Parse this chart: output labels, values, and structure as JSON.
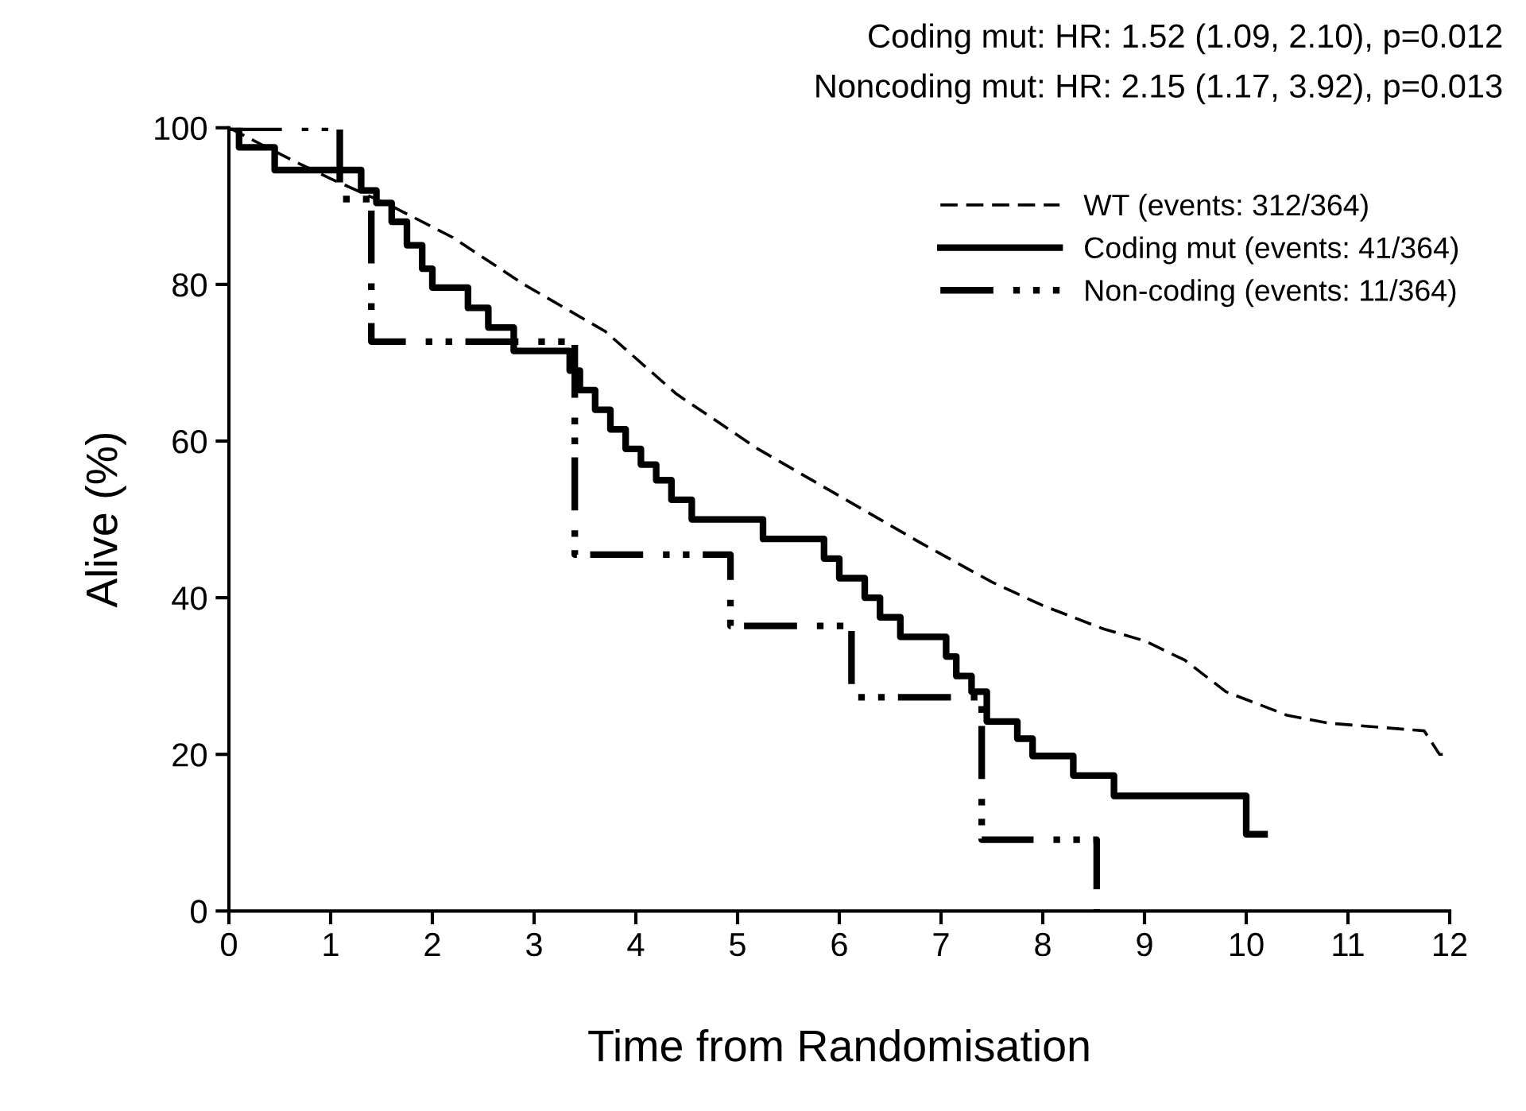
{
  "chart_data": {
    "type": "step",
    "xlabel": "Time from Randomisation",
    "ylabel": "Alive (%)",
    "annotations": [
      "Coding mut: HR: 1.52 (1.09, 2.10), p=0.012",
      "Noncoding mut: HR: 2.15 (1.17, 3.92), p=0.013"
    ],
    "xlim": [
      0,
      12
    ],
    "ylim": [
      0,
      100
    ],
    "xticks": [
      0,
      1,
      2,
      3,
      4,
      5,
      6,
      7,
      8,
      9,
      10,
      11,
      12
    ],
    "yticks": [
      0,
      20,
      40,
      60,
      80,
      100
    ],
    "grid": false,
    "legend": "top right",
    "marker": "none",
    "series": [
      {
        "name": "WT (events: 312/364)",
        "type": "line",
        "color": "#000000",
        "line_style": "dashed",
        "x": [
          0,
          0.3,
          0.6,
          1.0,
          1.6,
          2.2,
          2.9,
          3.7,
          4.4,
          5.2,
          6.0,
          6.8,
          7.5,
          8.0,
          8.6,
          9.0,
          9.4,
          9.8,
          10.4,
          10.8,
          11.75,
          11.9,
          11.95
        ],
        "values": [
          100,
          98,
          96,
          93.5,
          90,
          86,
          80,
          74,
          66,
          59,
          53,
          47,
          42,
          39,
          36,
          34.5,
          32,
          28,
          25,
          24,
          23,
          20,
          20
        ]
      },
      {
        "name": "Coding mut (events: 41/364)",
        "color": "#000000",
        "line_style": "solid",
        "x": [
          0,
          0.1,
          0.45,
          1.3,
          1.45,
          1.6,
          1.75,
          1.9,
          2.0,
          2.35,
          2.55,
          2.8,
          3.35,
          3.45,
          3.6,
          3.75,
          3.9,
          4.05,
          4.2,
          4.35,
          4.55,
          5.25,
          5.85,
          6.0,
          6.25,
          6.4,
          6.6,
          7.05,
          7.15,
          7.3,
          7.45,
          7.75,
          7.9,
          8.3,
          8.7,
          10.0,
          10.18
        ],
        "values": [
          100,
          97.5,
          94.6,
          92,
          90.4,
          88,
          85,
          82,
          79.6,
          77,
          74.5,
          71.5,
          69,
          66.5,
          64,
          61.5,
          59,
          57,
          55,
          52.5,
          50,
          47.5,
          45,
          42.5,
          40,
          37.5,
          35,
          32.5,
          30,
          28,
          24.2,
          22,
          19.8,
          17.3,
          14.7,
          9.8,
          9.8
        ]
      },
      {
        "name": "Non-coding (events: 11/364)",
        "color": "#000000",
        "line_style": "dashdot",
        "x": [
          0,
          1.09,
          1.4,
          3.4,
          4.93,
          6.12,
          7.4,
          8.53
        ],
        "values": [
          100,
          90.9,
          72.7,
          45.5,
          36.4,
          27.3,
          9.1,
          0
        ]
      }
    ]
  }
}
